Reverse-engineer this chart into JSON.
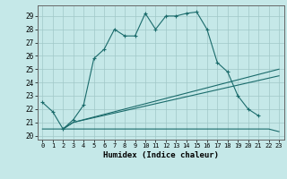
{
  "title": "",
  "xlabel": "Humidex (Indice chaleur)",
  "bg_color": "#c5e8e8",
  "grid_color": "#a0c8c8",
  "line_color": "#1a6b6b",
  "xlim": [
    -0.5,
    23.5
  ],
  "ylim": [
    19.7,
    29.8
  ],
  "yticks": [
    20,
    21,
    22,
    23,
    24,
    25,
    26,
    27,
    28,
    29
  ],
  "xticks": [
    0,
    1,
    2,
    3,
    4,
    5,
    6,
    7,
    8,
    9,
    10,
    11,
    12,
    13,
    14,
    15,
    16,
    17,
    18,
    19,
    20,
    21,
    22,
    23
  ],
  "curve1_x": [
    0,
    1,
    2,
    3,
    4,
    5,
    6,
    7,
    8,
    9,
    10,
    11,
    12,
    13,
    14,
    15,
    16,
    17,
    18,
    19,
    20,
    21
  ],
  "curve1_y": [
    22.5,
    21.8,
    20.5,
    21.2,
    22.3,
    25.8,
    26.5,
    28.0,
    27.5,
    27.5,
    29.2,
    28.0,
    29.0,
    29.0,
    29.2,
    29.3,
    28.0,
    25.5,
    24.8,
    23.0,
    22.0,
    21.5
  ],
  "curve2_x": [
    0,
    22,
    23
  ],
  "curve2_y": [
    20.5,
    20.5,
    20.3
  ],
  "curve3_x": [
    2,
    3,
    23
  ],
  "curve3_y": [
    20.5,
    21.0,
    25.0
  ],
  "curve4_x": [
    2,
    3,
    23
  ],
  "curve4_y": [
    20.5,
    21.0,
    24.5
  ]
}
